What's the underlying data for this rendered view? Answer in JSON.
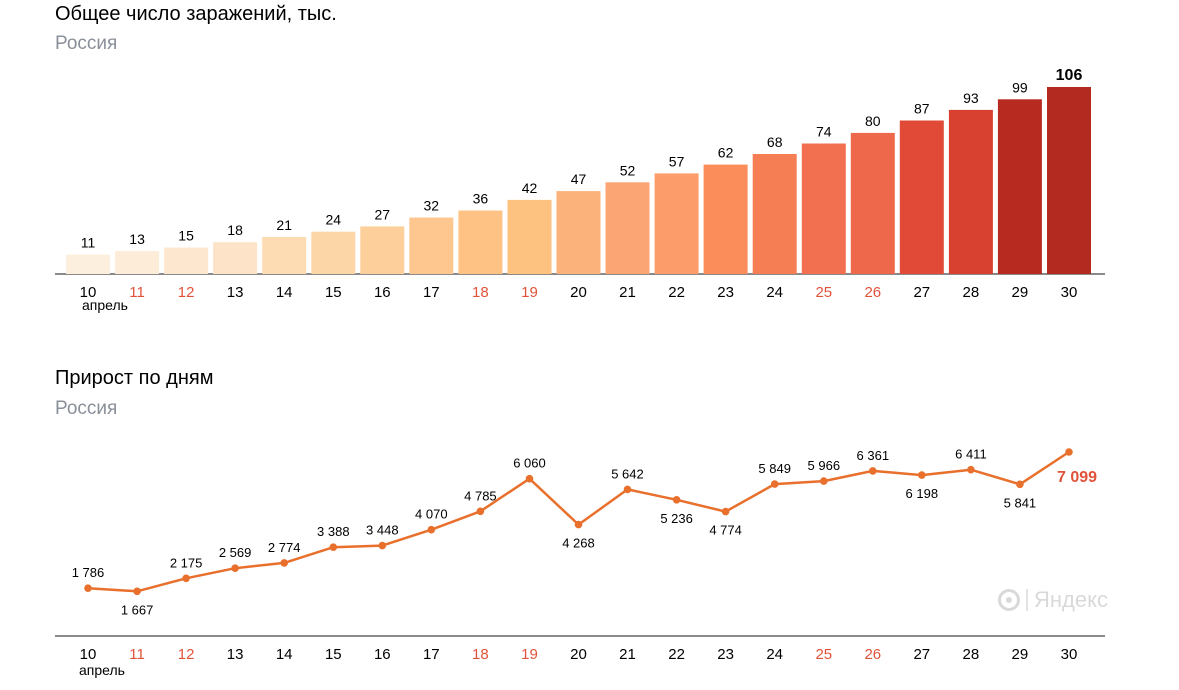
{
  "chart_data": [
    {
      "type": "bar",
      "title": "Общее число заражений, тыс.",
      "subtitle": "Россия",
      "month_label": "апрель",
      "categories": [
        "10",
        "11",
        "12",
        "13",
        "14",
        "15",
        "16",
        "17",
        "18",
        "19",
        "20",
        "21",
        "22",
        "23",
        "24",
        "25",
        "26",
        "27",
        "28",
        "29",
        "30"
      ],
      "weekend_categories": [
        "11",
        "12",
        "18",
        "19",
        "25",
        "26"
      ],
      "values": [
        11,
        13,
        15,
        18,
        21,
        24,
        27,
        32,
        36,
        42,
        47,
        52,
        57,
        62,
        68,
        74,
        80,
        87,
        93,
        99,
        106
      ],
      "value_labels": [
        "11",
        "13",
        "15",
        "18",
        "21",
        "24",
        "27",
        "32",
        "36",
        "42",
        "47",
        "52",
        "57",
        "62",
        "68",
        "74",
        "80",
        "87",
        "93",
        "99",
        "106"
      ],
      "bar_colors": [
        "#fdefdd",
        "#fdecd7",
        "#fde7cf",
        "#fde4c8",
        "#fddcb4",
        "#fdd6a8",
        "#fdcf9b",
        "#fdc78f",
        "#fdc284",
        "#fdc27f",
        "#fcb27b",
        "#fca574",
        "#fc9c6a",
        "#fb8d5a",
        "#f67e54",
        "#f2704f",
        "#ee694b",
        "#e04a36",
        "#d8402f",
        "#b62a1f",
        "#b32a20"
      ],
      "highlight_last": true,
      "ylim": [
        0,
        106
      ]
    },
    {
      "type": "line",
      "title": "Прирост по дням",
      "subtitle": "Россия",
      "month_label": "апрель",
      "categories": [
        "10",
        "11",
        "12",
        "13",
        "14",
        "15",
        "16",
        "17",
        "18",
        "19",
        "20",
        "21",
        "22",
        "23",
        "24",
        "25",
        "26",
        "27",
        "28",
        "29",
        "30"
      ],
      "weekend_categories": [
        "11",
        "12",
        "18",
        "19",
        "25",
        "26"
      ],
      "values": [
        1786,
        1667,
        2175,
        2569,
        2774,
        3388,
        3448,
        4070,
        4785,
        6060,
        4268,
        5642,
        5236,
        4774,
        5849,
        5966,
        6361,
        6198,
        6411,
        5841,
        7099
      ],
      "value_labels": [
        "1 786",
        "1 667",
        "2 175",
        "2 569",
        "2 774",
        "3 388",
        "3 448",
        "4 070",
        "4 785",
        "6 060",
        "4 268",
        "5 642",
        "5 236",
        "4 774",
        "5 849",
        "5 966",
        "6 361",
        "6 198",
        "6 411",
        "5 841",
        "7 099"
      ],
      "label_positions": [
        "above",
        "below",
        "above",
        "above",
        "above",
        "above",
        "above",
        "above",
        "above",
        "above",
        "below",
        "above",
        "below",
        "below",
        "above",
        "above",
        "above",
        "below",
        "above",
        "below",
        "right"
      ],
      "line_color": "#e8702c",
      "highlight_color": "#e0533a",
      "ylim": [
        1600,
        7100
      ]
    }
  ],
  "watermark": {
    "text": "Яндекс",
    "icon": "yandex-logo-icon"
  },
  "colors": {
    "weekend": "#e0533a",
    "text": "#000000",
    "subtitle": "#8a9099",
    "axis": "#444444"
  }
}
